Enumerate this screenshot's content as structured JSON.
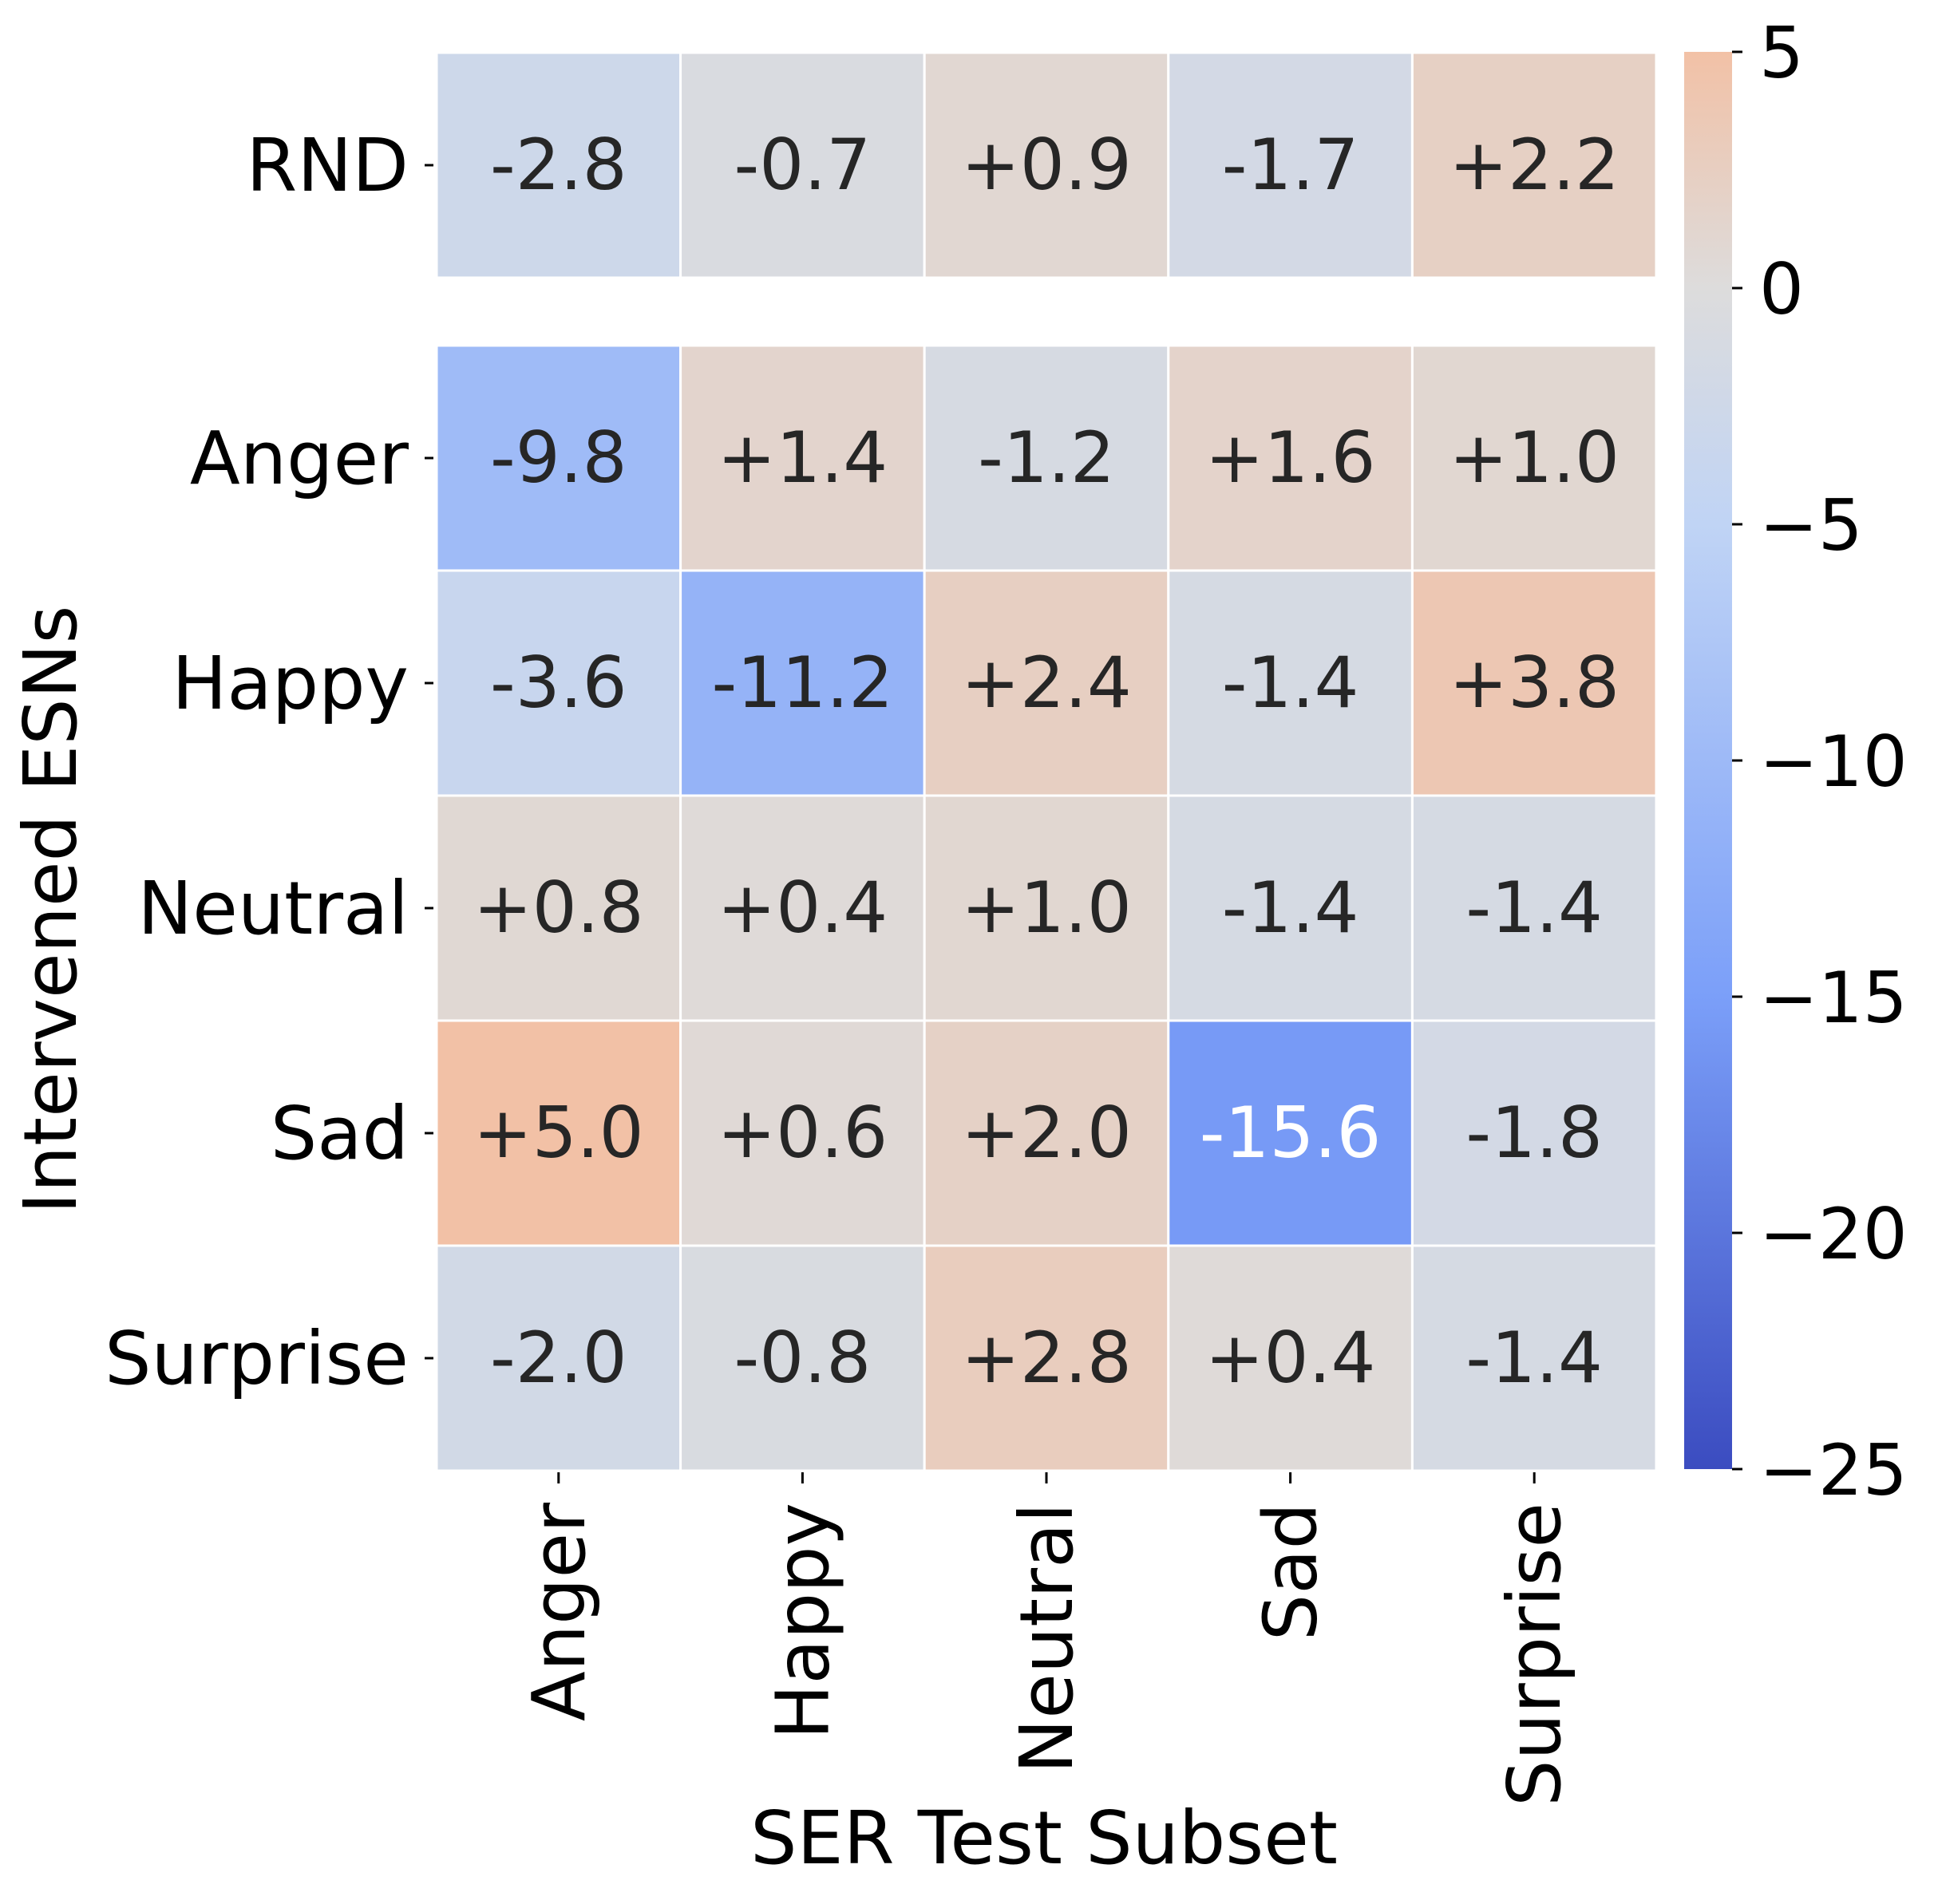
{
  "chart_data": {
    "type": "heatmap",
    "title": "",
    "xlabel": "SER Test Subset",
    "ylabel": "Intervened ESNs",
    "x_categories": [
      "Anger",
      "Happy",
      "Neutral",
      "Sad",
      "Surprise"
    ],
    "y_groups": [
      {
        "rows": [
          {
            "label": "RND",
            "values": [
              -2.8,
              -0.7,
              0.9,
              -1.7,
              2.2
            ],
            "labels": [
              "-2.8",
              "-0.7",
              "+0.9",
              "-1.7",
              "+2.2"
            ]
          }
        ]
      },
      {
        "rows": [
          {
            "label": "Anger",
            "values": [
              -9.8,
              1.4,
              -1.2,
              1.6,
              1.0
            ],
            "labels": [
              "-9.8",
              "+1.4",
              "-1.2",
              "+1.6",
              "+1.0"
            ]
          },
          {
            "label": "Happy",
            "values": [
              -3.6,
              -11.2,
              2.4,
              -1.4,
              3.8
            ],
            "labels": [
              "-3.6",
              "-11.2",
              "+2.4",
              "-1.4",
              "+3.8"
            ]
          },
          {
            "label": "Neutral",
            "values": [
              0.8,
              0.4,
              1.0,
              -1.4,
              -1.4
            ],
            "labels": [
              "+0.8",
              "+0.4",
              "+1.0",
              "-1.4",
              "-1.4"
            ]
          },
          {
            "label": "Sad",
            "values": [
              5.0,
              0.6,
              2.0,
              -15.6,
              -1.8
            ],
            "labels": [
              "+5.0",
              "+0.6",
              "+2.0",
              "-15.6",
              "-1.8"
            ]
          },
          {
            "label": "Surprise",
            "values": [
              -2.0,
              -0.8,
              2.8,
              0.4,
              -1.4
            ],
            "labels": [
              "-2.0",
              "-0.8",
              "+2.8",
              "+0.4",
              "-1.4"
            ]
          }
        ]
      }
    ],
    "colorbar": {
      "min": -25,
      "max": 5,
      "center": 0,
      "ticks": [
        5,
        0,
        -5,
        -10,
        -15,
        -20,
        -25
      ],
      "tick_labels": [
        "5",
        "0",
        "−5",
        "−10",
        "−15",
        "−20",
        "−25"
      ],
      "colormap": "coolwarm"
    },
    "colors": {
      "neg_max": "#3b4cc0",
      "center": "#dddcdc",
      "pos_max": "#f2c1a6"
    }
  }
}
